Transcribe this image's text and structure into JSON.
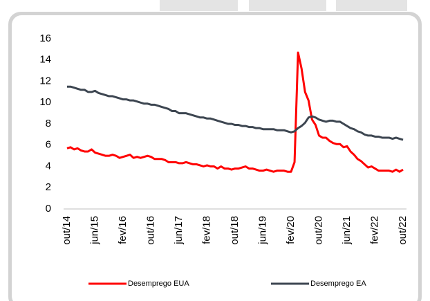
{
  "chart_data": {
    "type": "line",
    "categories": [
      "out/14",
      null,
      null,
      null,
      null,
      null,
      null,
      null,
      "jun/15",
      null,
      null,
      null,
      null,
      null,
      null,
      null,
      "fev/16",
      null,
      null,
      null,
      null,
      null,
      null,
      null,
      "out/16",
      null,
      null,
      null,
      null,
      null,
      null,
      null,
      "jun/17",
      null,
      null,
      null,
      null,
      null,
      null,
      null,
      "fev/18",
      null,
      null,
      null,
      null,
      null,
      null,
      null,
      "out/18",
      null,
      null,
      null,
      null,
      null,
      null,
      null,
      "jun/19",
      null,
      null,
      null,
      null,
      null,
      null,
      null,
      "fev/20",
      null,
      null,
      null,
      null,
      null,
      null,
      null,
      "out/20",
      null,
      null,
      null,
      null,
      null,
      null,
      null,
      "jun/21",
      null,
      null,
      null,
      null,
      null,
      null,
      null,
      "fev/22",
      null,
      null,
      null,
      null,
      null,
      null,
      null,
      "out/22"
    ],
    "series": [
      {
        "name": "Desemprego EUA",
        "color": "#ff0000",
        "values": [
          5.7,
          5.8,
          5.6,
          5.7,
          5.5,
          5.4,
          5.4,
          5.6,
          5.3,
          5.2,
          5.1,
          5.0,
          5.0,
          5.1,
          5.0,
          4.8,
          4.9,
          5.0,
          5.1,
          4.8,
          4.9,
          4.8,
          4.9,
          5.0,
          4.9,
          4.7,
          4.7,
          4.7,
          4.6,
          4.4,
          4.4,
          4.4,
          4.3,
          4.3,
          4.4,
          4.3,
          4.2,
          4.2,
          4.1,
          4.0,
          4.1,
          4.0,
          4.0,
          3.8,
          4.0,
          3.8,
          3.8,
          3.7,
          3.8,
          3.8,
          3.9,
          4.0,
          3.8,
          3.8,
          3.7,
          3.6,
          3.6,
          3.7,
          3.6,
          3.5,
          3.6,
          3.6,
          3.6,
          3.5,
          3.5,
          4.4,
          14.7,
          13.2,
          11.0,
          10.2,
          8.4,
          7.9,
          6.9,
          6.7,
          6.7,
          6.4,
          6.2,
          6.1,
          6.1,
          5.8,
          5.9,
          5.4,
          5.1,
          4.7,
          4.5,
          4.2,
          3.9,
          4.0,
          3.8,
          3.6,
          3.6,
          3.6,
          3.6,
          3.5,
          3.7,
          3.5,
          3.7
        ]
      },
      {
        "name": "Desemprego EA",
        "color": "#3d4651",
        "values": [
          11.5,
          11.5,
          11.4,
          11.3,
          11.2,
          11.2,
          11.0,
          11.0,
          11.1,
          10.9,
          10.8,
          10.7,
          10.6,
          10.6,
          10.5,
          10.4,
          10.3,
          10.3,
          10.2,
          10.2,
          10.1,
          10.0,
          9.9,
          9.9,
          9.8,
          9.8,
          9.7,
          9.6,
          9.5,
          9.4,
          9.2,
          9.2,
          9.0,
          9.0,
          9.0,
          8.9,
          8.8,
          8.7,
          8.6,
          8.6,
          8.5,
          8.5,
          8.4,
          8.3,
          8.2,
          8.1,
          8.0,
          8.0,
          7.9,
          7.9,
          7.8,
          7.8,
          7.7,
          7.7,
          7.6,
          7.6,
          7.5,
          7.5,
          7.5,
          7.5,
          7.4,
          7.4,
          7.4,
          7.3,
          7.2,
          7.3,
          7.6,
          7.8,
          8.1,
          8.6,
          8.7,
          8.6,
          8.4,
          8.3,
          8.2,
          8.3,
          8.3,
          8.2,
          8.2,
          8.0,
          7.8,
          7.6,
          7.5,
          7.3,
          7.2,
          7.0,
          6.9,
          6.9,
          6.8,
          6.8,
          6.7,
          6.7,
          6.7,
          6.6,
          6.7,
          6.6,
          6.5
        ]
      }
    ],
    "ylim": [
      0,
      16
    ],
    "yticks": [
      0,
      2,
      4,
      6,
      8,
      10,
      12,
      14,
      16
    ],
    "legend": "bottom",
    "grid": false
  }
}
